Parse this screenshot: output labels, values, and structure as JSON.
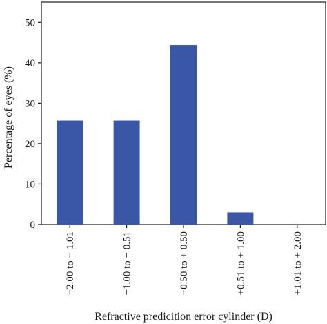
{
  "chart_data": {
    "type": "bar",
    "categories": [
      "−2.00 to − 1.01",
      "−1.00 to − 0.51",
      "−0.50 to + 0.50",
      "+0.51 to + 1.00",
      "+1.01 to + 2.00"
    ],
    "values": [
      25.7,
      25.7,
      44.4,
      3.0,
      0
    ],
    "xlabel": "Refractive predicition error cylinder (D)",
    "ylabel": "Percentage of eyes (%)",
    "ylim": [
      0,
      55
    ],
    "yticks": [
      0,
      10,
      20,
      30,
      40,
      50
    ],
    "grid": false,
    "legend": "none",
    "bar_color": "#3a57a7",
    "axis_color": "#1a1a1a"
  }
}
